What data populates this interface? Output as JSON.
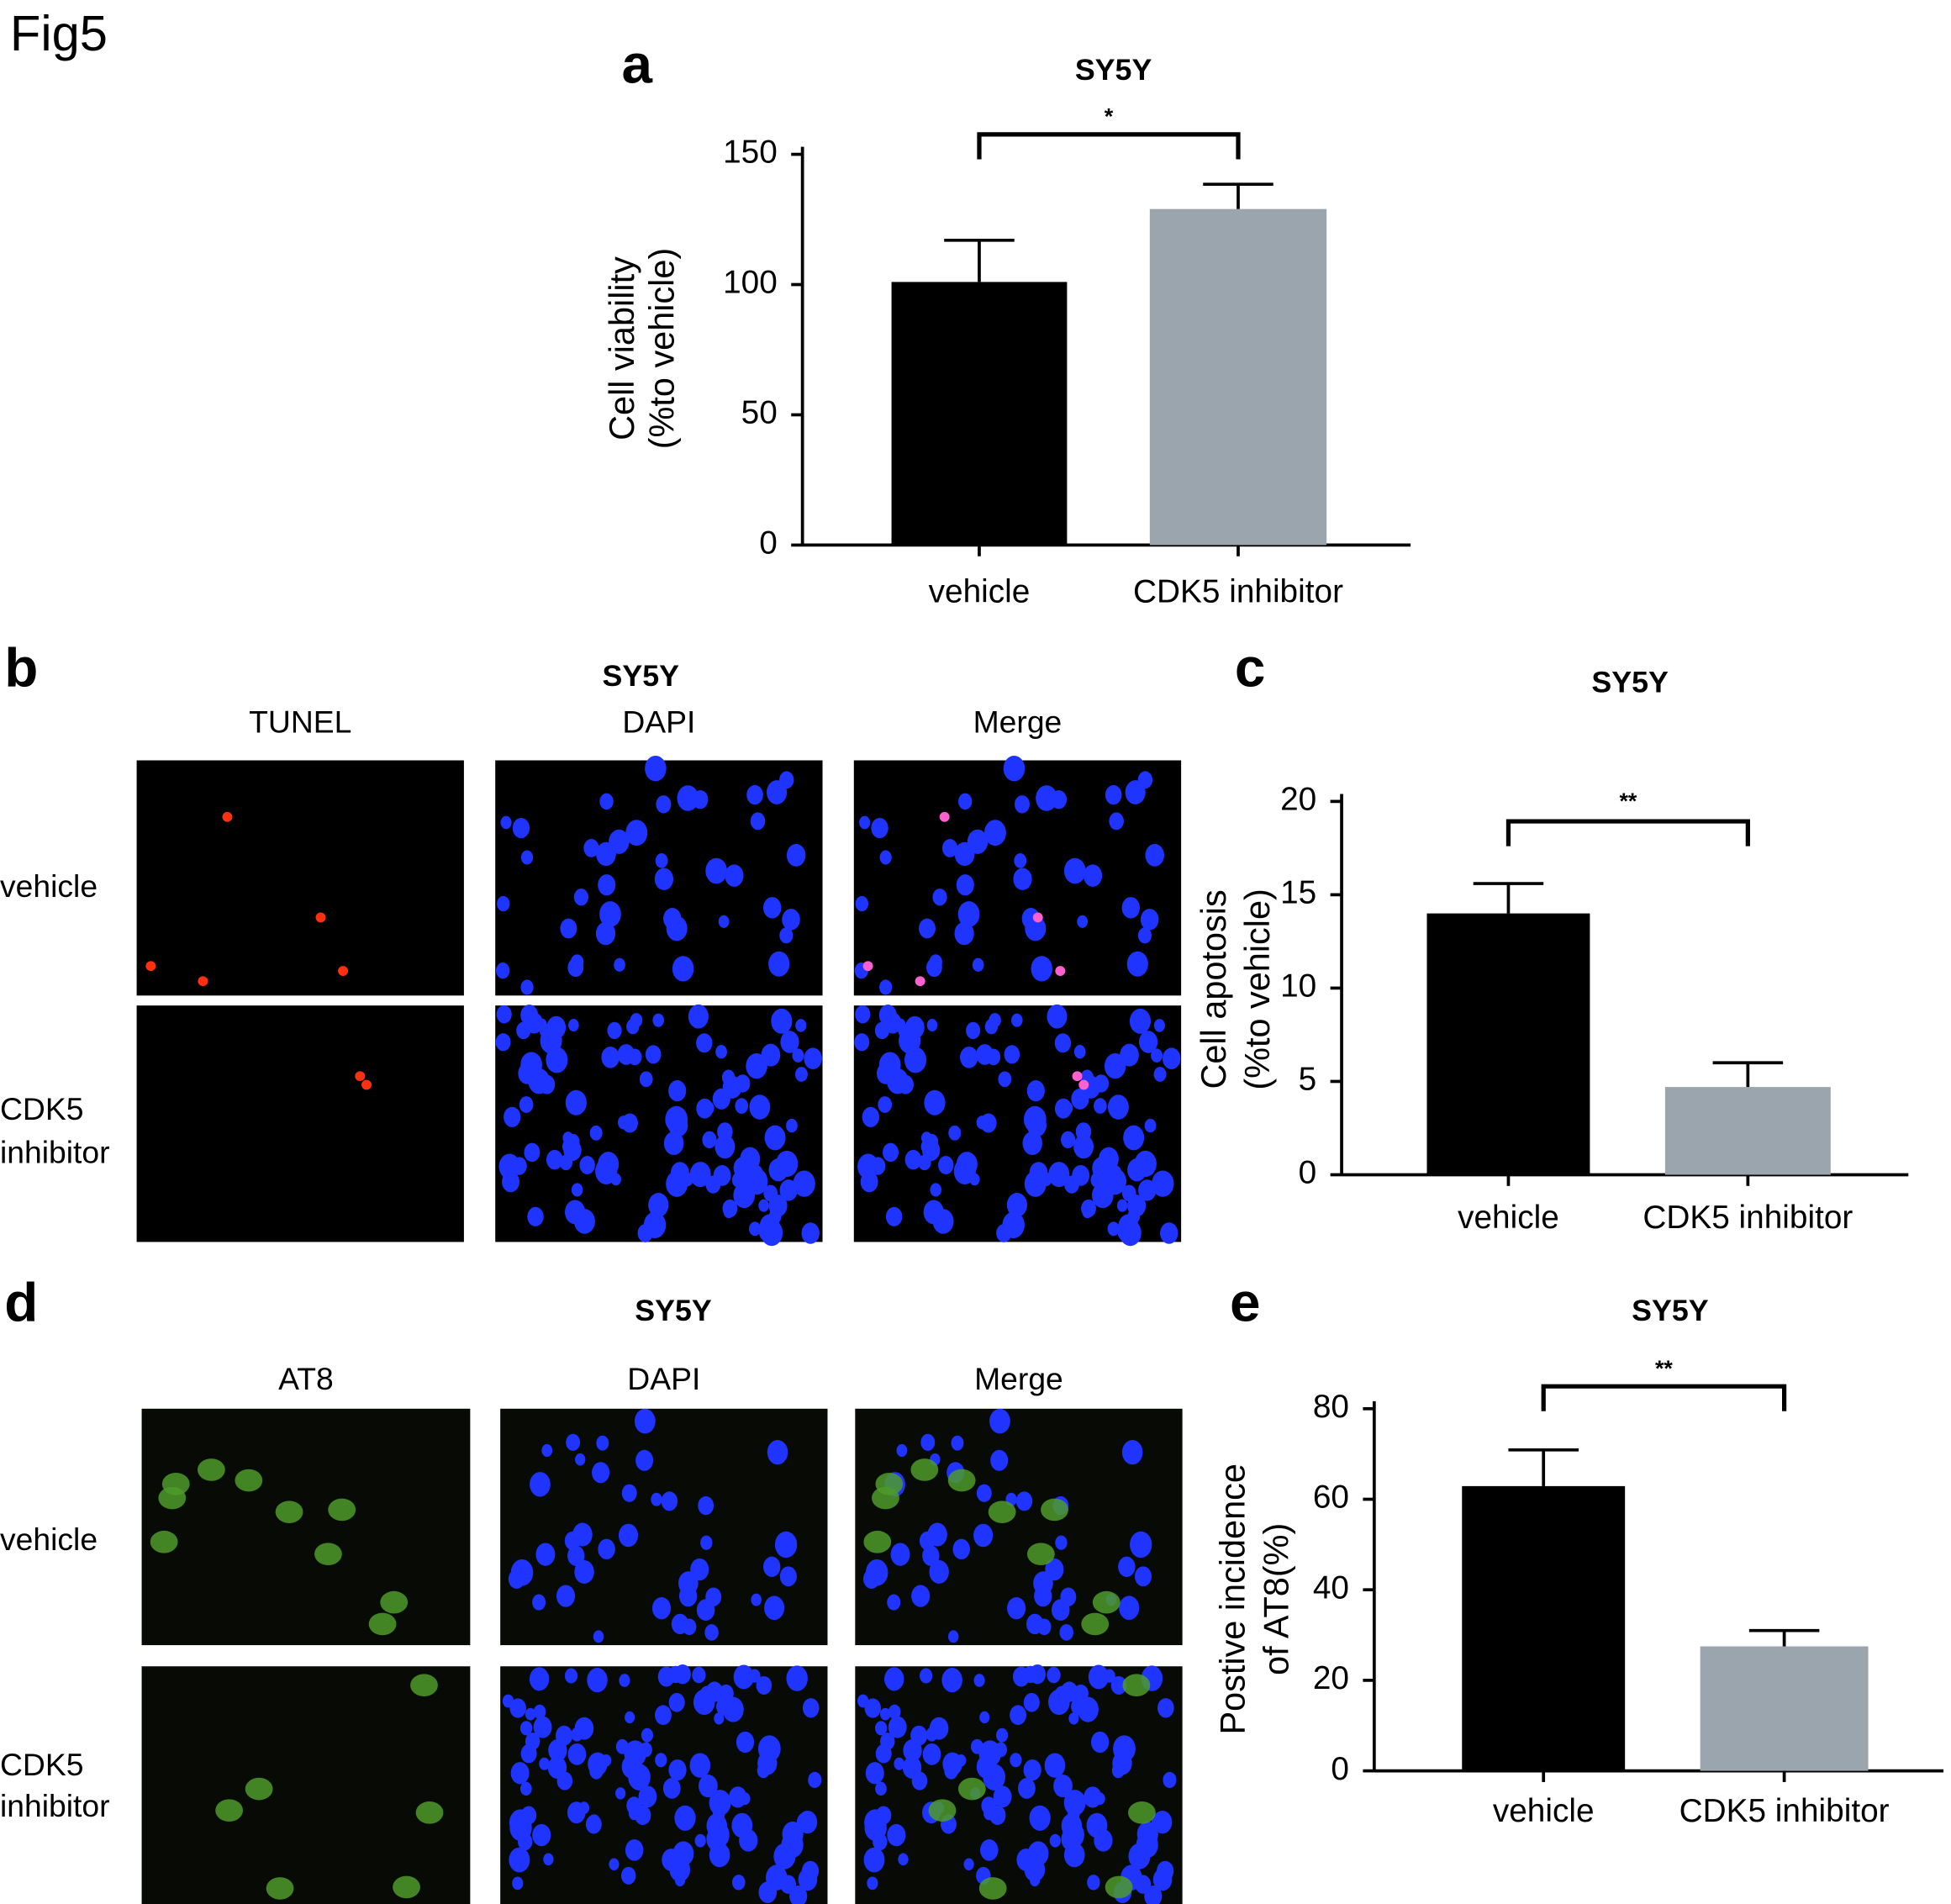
{
  "figure_title": "Fig5",
  "chart_data": [
    {
      "type": "bar",
      "panel": "a",
      "title": "SY5Y",
      "y_label": [
        "Cell viability",
        "(%to vehicle)"
      ],
      "categories": [
        "vehicle",
        "CDK5 inhibitor"
      ],
      "values": [
        101,
        129
      ],
      "errors": [
        16,
        9.5
      ],
      "colors": [
        "#000000",
        "#9aa5ad"
      ],
      "ylim": [
        0,
        150
      ],
      "yticks": [
        0,
        50,
        100,
        150
      ],
      "significance": "*"
    },
    {
      "type": "bar",
      "panel": "c",
      "title": "SY5Y",
      "y_label": [
        "Cell apotosis",
        "(%to vehicle)"
      ],
      "categories": [
        "vehicle",
        "CDK5 inhibitor"
      ],
      "values": [
        14.0,
        4.7
      ],
      "errors": [
        1.6,
        1.3
      ],
      "colors": [
        "#000000",
        "#9aa5ad"
      ],
      "ylim": [
        0,
        20
      ],
      "yticks": [
        0,
        5,
        10,
        15,
        20
      ],
      "significance": "**"
    },
    {
      "type": "bar",
      "panel": "e",
      "title": "SY5Y",
      "y_label": [
        "Postive incidence",
        "of AT8(%)"
      ],
      "categories": [
        "vehicle",
        "CDK5 inhibitor"
      ],
      "values": [
        62.9,
        27.5
      ],
      "errors": [
        8,
        3.5
      ],
      "colors": [
        "#000000",
        "#9aa5ad"
      ],
      "ylim": [
        0,
        80
      ],
      "yticks": [
        0,
        20,
        40,
        60,
        80
      ],
      "significance": "**"
    }
  ],
  "image_panels": [
    {
      "panel": "b",
      "title": "SY5Y",
      "columns": [
        "TUNEL",
        "DAPI",
        "Merge"
      ],
      "rows": [
        [
          "vehicle"
        ],
        [
          "CDK5",
          "inhibitor"
        ]
      ]
    },
    {
      "panel": "d",
      "title": "SY5Y",
      "columns": [
        "AT8",
        "DAPI",
        "Merge"
      ],
      "rows": [
        [
          "vehicle"
        ],
        [
          "CDK5",
          "inhibitor"
        ]
      ]
    }
  ]
}
